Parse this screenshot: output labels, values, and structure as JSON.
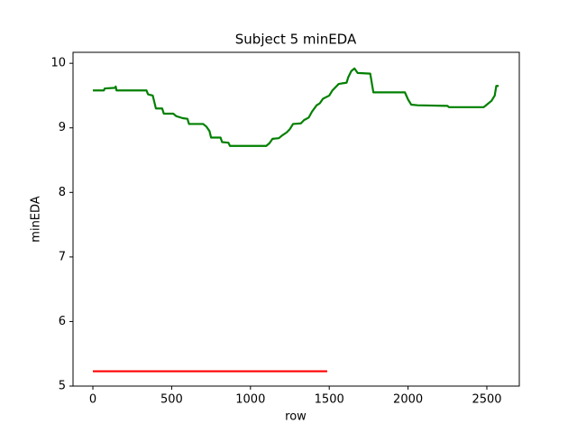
{
  "chart_data": {
    "type": "line",
    "title": "Subject 5 minEDA",
    "xlabel": "row",
    "ylabel": "minEDA",
    "xlim": [
      -126,
      2706
    ],
    "ylim": [
      5,
      10.17
    ],
    "xticks": [
      0,
      500,
      1000,
      1500,
      2000,
      2500
    ],
    "yticks": [
      5,
      6,
      7,
      8,
      9,
      10
    ],
    "series": [
      {
        "color": "#008000",
        "x": [
          0,
          70,
          75,
          140,
          145,
          150,
          340,
          350,
          380,
          390,
          400,
          440,
          450,
          510,
          530,
          570,
          600,
          610,
          700,
          720,
          740,
          750,
          810,
          820,
          860,
          870,
          1100,
          1120,
          1140,
          1180,
          1200,
          1230,
          1250,
          1270,
          1320,
          1340,
          1370,
          1390,
          1420,
          1440,
          1460,
          1500,
          1520,
          1560,
          1610,
          1620,
          1640,
          1660,
          1680,
          1760,
          1780,
          1980,
          2000,
          2020,
          2060,
          2250,
          2260,
          2480,
          2500,
          2530,
          2550,
          2560,
          2575
        ],
        "values": [
          9.58,
          9.58,
          9.61,
          9.62,
          9.64,
          9.58,
          9.58,
          9.52,
          9.5,
          9.4,
          9.3,
          9.3,
          9.22,
          9.22,
          9.18,
          9.15,
          9.14,
          9.06,
          9.06,
          9.02,
          8.95,
          8.85,
          8.85,
          8.78,
          8.77,
          8.72,
          8.72,
          8.76,
          8.83,
          8.84,
          8.88,
          8.93,
          8.98,
          9.06,
          9.07,
          9.12,
          9.16,
          9.25,
          9.35,
          9.38,
          9.45,
          9.5,
          9.58,
          9.68,
          9.7,
          9.78,
          9.88,
          9.92,
          9.85,
          9.84,
          9.55,
          9.55,
          9.44,
          9.36,
          9.35,
          9.34,
          9.32,
          9.32,
          9.36,
          9.42,
          9.5,
          9.65,
          9.65
        ]
      },
      {
        "color": "#ff0000",
        "x": [
          0,
          1487
        ],
        "values": [
          5.23,
          5.23
        ]
      }
    ]
  }
}
